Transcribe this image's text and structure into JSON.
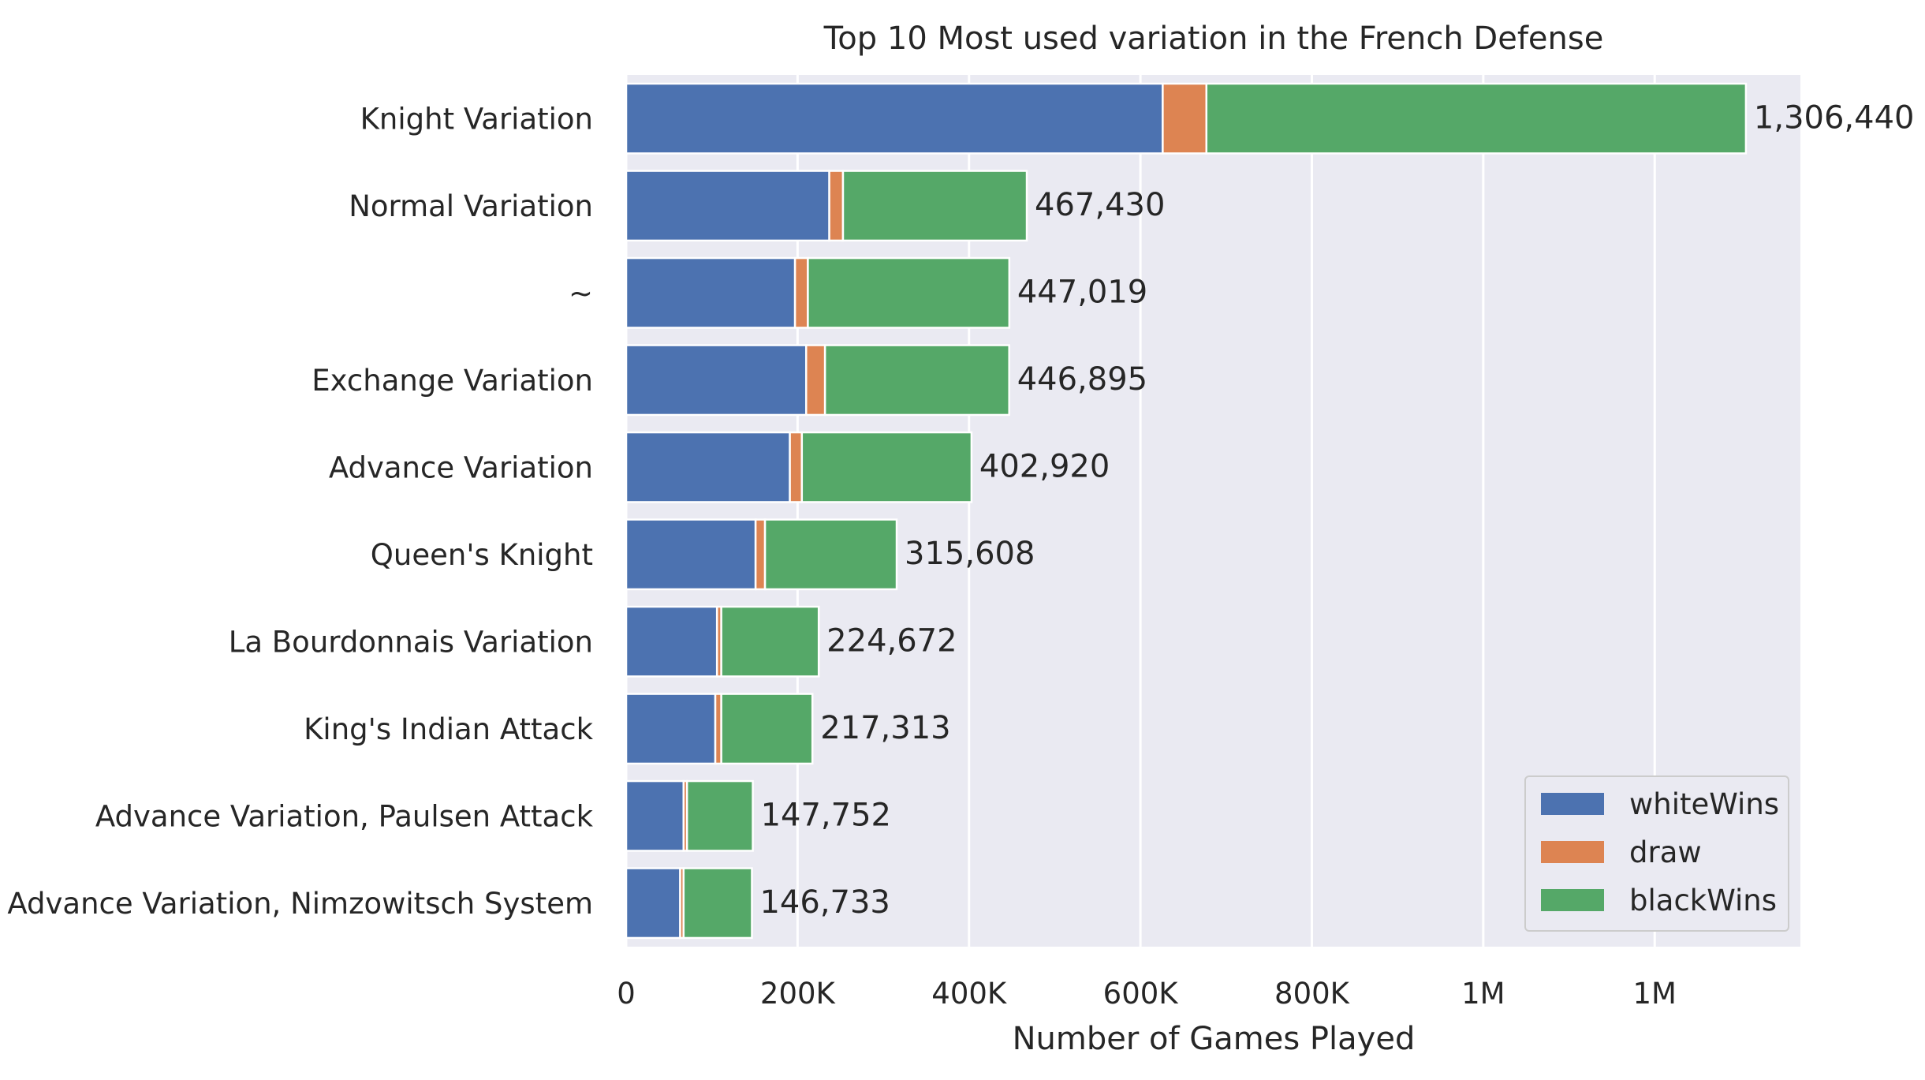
{
  "chart_data": {
    "type": "bar",
    "orientation": "horizontal",
    "stacked": true,
    "title": "Top 10 Most used variation in the French Defense",
    "xlabel": "Number of Games Played",
    "ylabel": "",
    "xlim": [
      0,
      1370000
    ],
    "x_ticks": [
      {
        "value": 0,
        "label": "0"
      },
      {
        "value": 200000,
        "label": "200K"
      },
      {
        "value": 400000,
        "label": "400K"
      },
      {
        "value": 600000,
        "label": "600K"
      },
      {
        "value": 800000,
        "label": "800K"
      },
      {
        "value": 1000000,
        "label": "1M"
      },
      {
        "value": 1200000,
        "label": "1M"
      }
    ],
    "grid": true,
    "legend_position": "lower right",
    "categories": [
      "Knight Variation",
      "Normal Variation",
      "~",
      "Exchange Variation",
      "Advance Variation",
      "Queen's Knight",
      "La Bourdonnais Variation",
      "King's Indian Attack",
      "Advance Variation, Paulsen Attack",
      "Advance Variation, Nimzowitsch System"
    ],
    "series": [
      {
        "name": "whiteWins",
        "color": "#4c72b0",
        "values": [
          626000,
          237000,
          197000,
          210000,
          191000,
          151000,
          106000,
          104000,
          67000,
          63000
        ]
      },
      {
        "name": "draw",
        "color": "#dd8452",
        "values": [
          51000,
          16000,
          15000,
          22000,
          14000,
          11000,
          5000,
          7000,
          4000,
          4000
        ]
      },
      {
        "name": "blackWins",
        "color": "#55a868",
        "values": [
          629440,
          214430,
          235019,
          214895,
          197920,
          153608,
          113672,
          106313,
          76752,
          79733
        ]
      }
    ],
    "totals": [
      "1,306,440",
      "467,430",
      "447,019",
      "446,895",
      "402,920",
      "315,608",
      "224,672",
      "217,313",
      "147,752",
      "146,733"
    ]
  }
}
